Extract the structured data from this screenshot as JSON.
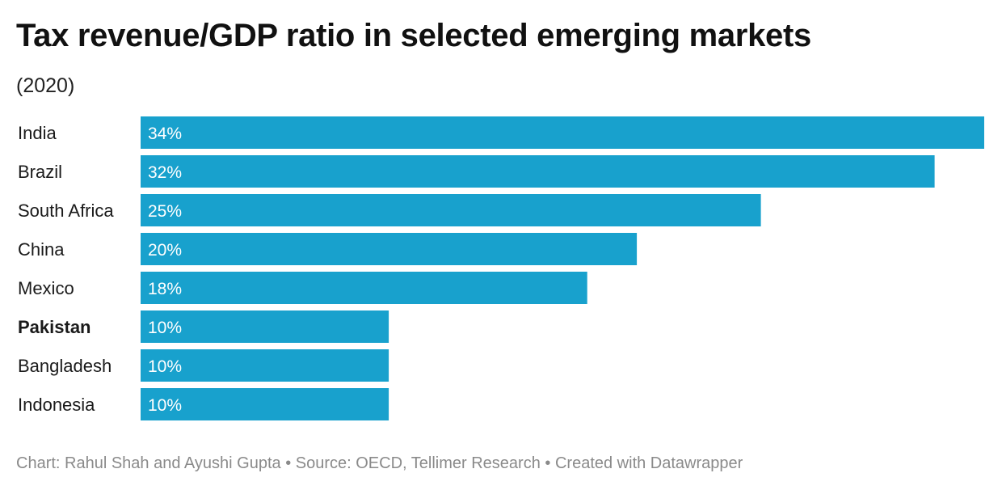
{
  "chart_data": {
    "type": "bar",
    "orientation": "horizontal",
    "title": "Tax revenue/GDP ratio in selected emerging markets",
    "subtitle": "(2020)",
    "categories": [
      "India",
      "Brazil",
      "South Africa",
      "China",
      "Mexico",
      "Pakistan",
      "Bangladesh",
      "Indonesia"
    ],
    "values": [
      34,
      32,
      25,
      20,
      18,
      10,
      10,
      10
    ],
    "value_labels": [
      "34%",
      "32%",
      "25%",
      "20%",
      "18%",
      "10%",
      "10%",
      "10%"
    ],
    "highlighted_category": "Pakistan",
    "bar_color": "#18a1cd",
    "xlim": [
      0,
      34
    ],
    "grid": false,
    "legend": "none"
  },
  "footer": {
    "credit": "Chart: Rahul Shah and Ayushi Gupta",
    "separator": " • ",
    "source": "Source: OECD, Tellimer Research",
    "tool": "Created with Datawrapper"
  }
}
